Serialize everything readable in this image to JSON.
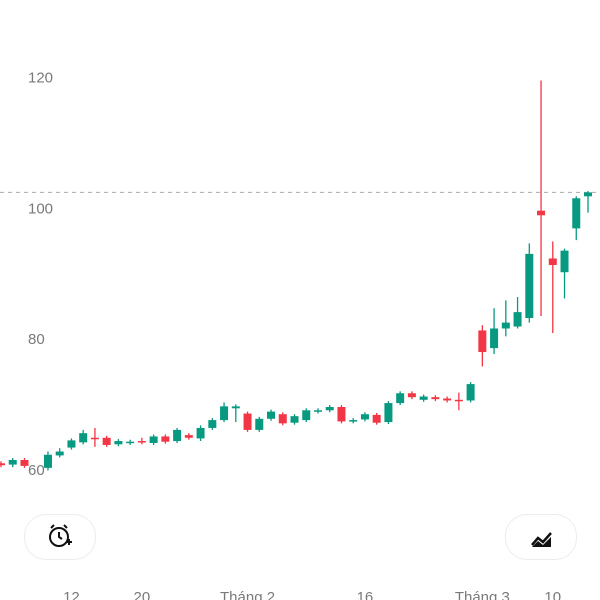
{
  "chart_data": {
    "type": "candlestick",
    "categories": [
      null,
      null,
      null,
      null,
      null,
      null,
      "12",
      null,
      null,
      null,
      null,
      null,
      "20",
      null,
      null,
      null,
      null,
      null,
      null,
      null,
      null,
      "Tháng 2",
      null,
      null,
      null,
      null,
      null,
      null,
      null,
      null,
      null,
      "16",
      null,
      null,
      null,
      null,
      null,
      null,
      null,
      null,
      null,
      "Tháng 3",
      null,
      null,
      null,
      null,
      null,
      "10",
      null,
      null,
      null
    ],
    "open": [
      61.2,
      61.0,
      61.7,
      null,
      60.5,
      62.4,
      63.6,
      64.4,
      65.1,
      65.1,
      64.1,
      64.3,
      64.6,
      64.3,
      65.3,
      64.6,
      65.5,
      65.0,
      66.6,
      67.8,
      69.6,
      68.8,
      66.3,
      68.0,
      68.7,
      67.4,
      67.8,
      69.1,
      69.3,
      69.8,
      67.6,
      67.9,
      68.6,
      67.5,
      70.4,
      71.9,
      70.9,
      71.3,
      71.1,
      70.9,
      70.8,
      81.5,
      78.8,
      81.8,
      82.1,
      83.4,
      99.8,
      92.5,
      90.4,
      97.1,
      102.0
    ],
    "high": [
      61.5,
      62.0,
      62.0,
      null,
      63.0,
      63.5,
      65.0,
      66.3,
      66.6,
      65.4,
      64.9,
      64.8,
      65.1,
      65.6,
      65.6,
      66.6,
      65.8,
      67.0,
      68.1,
      70.5,
      70.2,
      69.1,
      68.3,
      69.4,
      69.0,
      68.7,
      69.6,
      69.6,
      70.1,
      70.1,
      68.1,
      69.0,
      68.9,
      70.7,
      72.2,
      72.2,
      71.7,
      71.6,
      71.4,
      72.0,
      73.6,
      82.3,
      84.9,
      86.1,
      86.6,
      94.8,
      119.7,
      95.1,
      94.0,
      102.0,
      102.8
    ],
    "low": [
      60.6,
      60.6,
      60.5,
      null,
      60.1,
      62.1,
      63.3,
      64.1,
      63.7,
      63.7,
      63.8,
      64.0,
      64.1,
      64.0,
      64.2,
      64.3,
      64.8,
      64.6,
      66.3,
      67.5,
      67.5,
      66.0,
      66.0,
      67.7,
      67.0,
      67.1,
      67.5,
      68.8,
      69.0,
      67.3,
      67.3,
      67.6,
      67.1,
      67.2,
      70.1,
      71.0,
      70.6,
      70.7,
      70.5,
      69.3,
      70.5,
      76.0,
      77.9,
      80.6,
      81.8,
      82.7,
      83.7,
      81.1,
      86.4,
      95.3,
      99.5
    ],
    "close": [
      60.9,
      61.7,
      60.8,
      null,
      62.5,
      63.0,
      64.7,
      65.8,
      64.9,
      64.0,
      64.6,
      64.5,
      64.4,
      65.3,
      64.5,
      66.3,
      65.1,
      66.6,
      67.8,
      69.9,
      69.9,
      66.3,
      68.0,
      69.1,
      67.3,
      68.4,
      69.3,
      69.3,
      69.8,
      67.6,
      67.8,
      68.7,
      67.4,
      70.4,
      71.9,
      71.3,
      71.4,
      71.0,
      70.8,
      70.7,
      73.3,
      78.2,
      81.8,
      82.7,
      84.3,
      93.2,
      99.1,
      91.5,
      93.7,
      101.7,
      102.6
    ],
    "up_color": "#089981",
    "down_color": "#f23645",
    "price_line": 102.6,
    "ylim": [
      40,
      132
    ],
    "yticks": [
      60,
      80,
      100,
      120
    ],
    "grid": false
  }
}
